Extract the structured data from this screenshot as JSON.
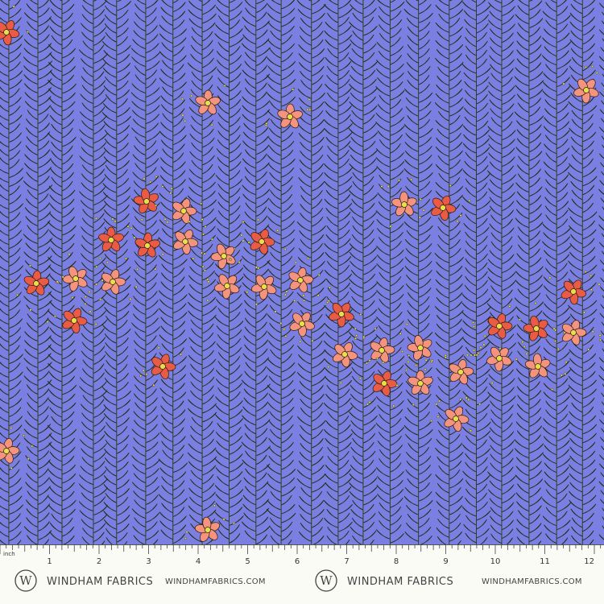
{
  "ruler": {
    "unit": "inch",
    "labels": [
      1,
      2,
      3,
      4,
      5,
      6,
      7,
      8,
      9,
      10,
      11,
      12
    ]
  },
  "brand": [
    {
      "logo": "W",
      "name": "WINDHAM FABRICS",
      "url": "WINDHAMFABRICS.COM"
    },
    {
      "logo": "W",
      "name": "WINDHAM FABRICS",
      "url": "WINDHAMFABRICS.COM"
    }
  ]
}
